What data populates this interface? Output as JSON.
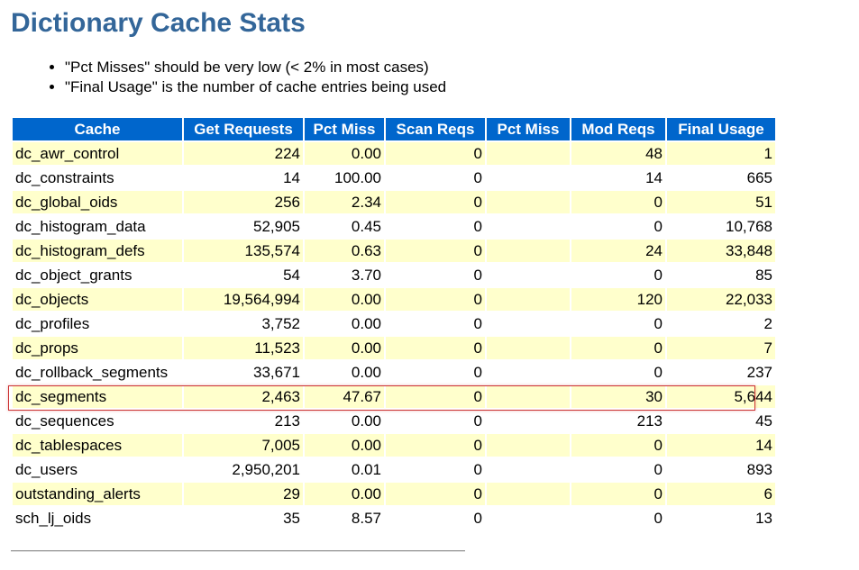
{
  "page": {
    "title": "Dictionary Cache Stats",
    "notes": [
      "\"Pct Misses\"  should be very low (< 2% in most cases)",
      "\"Final Usage\" is the number of cache entries being used"
    ]
  },
  "table": {
    "headers": [
      "Cache",
      "Get Requests",
      "Pct Miss",
      "Scan Reqs",
      "Pct Miss",
      "Mod Reqs",
      "Final Usage"
    ],
    "rows": [
      [
        "dc_awr_control",
        "224",
        "0.00",
        "0",
        "",
        "48",
        "1"
      ],
      [
        "dc_constraints",
        "14",
        "100.00",
        "0",
        "",
        "14",
        "665"
      ],
      [
        "dc_global_oids",
        "256",
        "2.34",
        "0",
        "",
        "0",
        "51"
      ],
      [
        "dc_histogram_data",
        "52,905",
        "0.45",
        "0",
        "",
        "0",
        "10,768"
      ],
      [
        "dc_histogram_defs",
        "135,574",
        "0.63",
        "0",
        "",
        "24",
        "33,848"
      ],
      [
        "dc_object_grants",
        "54",
        "3.70",
        "0",
        "",
        "0",
        "85"
      ],
      [
        "dc_objects",
        "19,564,994",
        "0.00",
        "0",
        "",
        "120",
        "22,033"
      ],
      [
        "dc_profiles",
        "3,752",
        "0.00",
        "0",
        "",
        "0",
        "2"
      ],
      [
        "dc_props",
        "11,523",
        "0.00",
        "0",
        "",
        "0",
        "7"
      ],
      [
        "dc_rollback_segments",
        "33,671",
        "0.00",
        "0",
        "",
        "0",
        "237"
      ],
      [
        "dc_segments",
        "2,463",
        "47.67",
        "0",
        "",
        "30",
        "5,644"
      ],
      [
        "dc_sequences",
        "213",
        "0.00",
        "0",
        "",
        "213",
        "45"
      ],
      [
        "dc_tablespaces",
        "7,005",
        "0.00",
        "0",
        "",
        "0",
        "14"
      ],
      [
        "dc_users",
        "2,950,201",
        "0.01",
        "0",
        "",
        "0",
        "893"
      ],
      [
        "outstanding_alerts",
        "29",
        "0.00",
        "0",
        "",
        "0",
        "6"
      ],
      [
        "sch_lj_oids",
        "35",
        "8.57",
        "0",
        "",
        "0",
        "13"
      ]
    ],
    "highlighted_row": 10
  },
  "colors": {
    "title": "#336699",
    "header_bg": "#0066cc",
    "odd_row_bg": "#ffffcc",
    "highlight_border": "#cc3333"
  }
}
